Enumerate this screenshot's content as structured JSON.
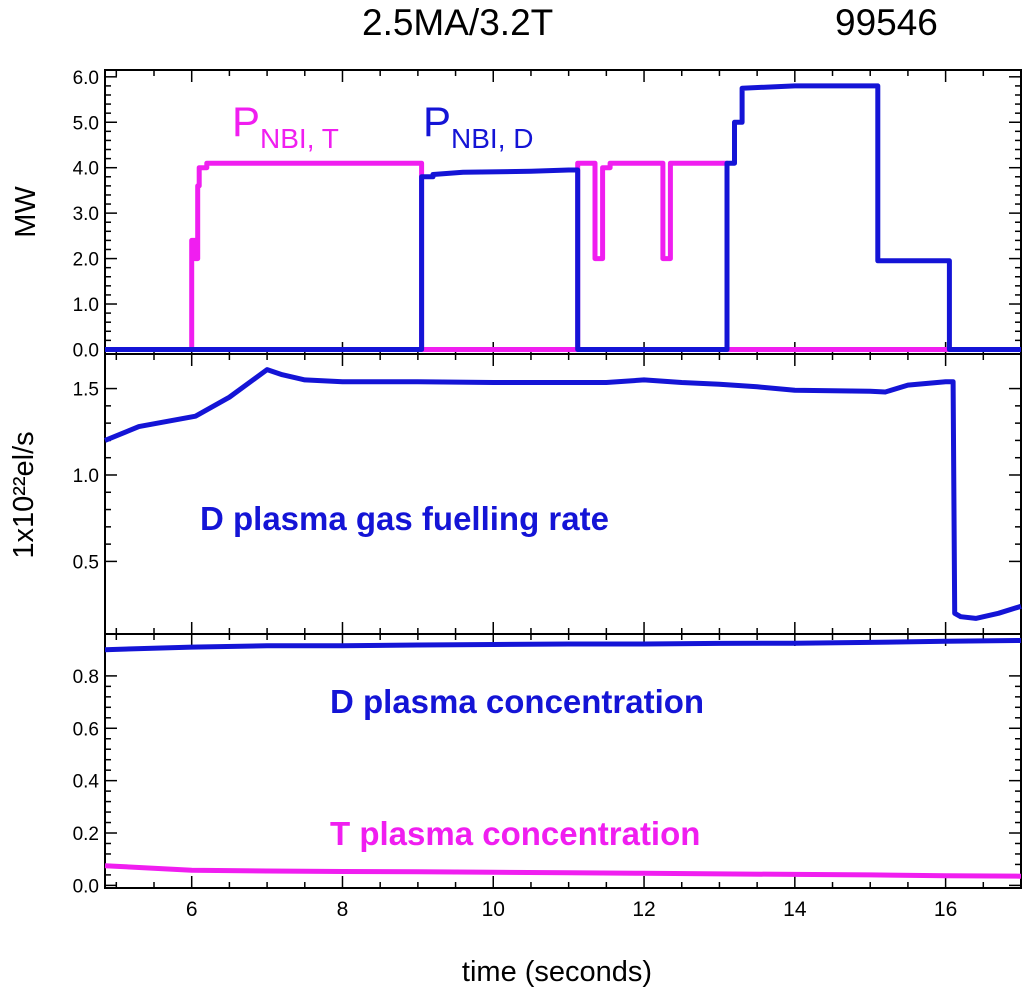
{
  "header": {
    "title": "2.5MA/3.2T",
    "shot": "99546"
  },
  "colors": {
    "deuterium": "#1414d6",
    "tritium": "#f01ef0",
    "axis": "#000000"
  },
  "xlabel": "time (seconds)",
  "chart_data": [
    {
      "type": "line",
      "ylabel": "MW",
      "xlim": [
        4.85,
        17.0
      ],
      "ylim": [
        -0.1,
        6.15
      ],
      "x_ticks": [
        6,
        8,
        10,
        12,
        14,
        16
      ],
      "y_ticks": [
        "0.0",
        "1.0",
        "2.0",
        "3.0",
        "4.0",
        "5.0",
        "6.0"
      ],
      "legend": {
        "t": {
          "main": "P",
          "sub": "NBI, T"
        },
        "d": {
          "main": "P",
          "sub": "NBI, D"
        }
      },
      "series": [
        {
          "name": "PNBI, T",
          "color": "tritium",
          "x": [
            4.85,
            6.0,
            6.0,
            6.04,
            6.04,
            6.08,
            6.08,
            6.1,
            6.1,
            6.2,
            6.2,
            9.05,
            9.05,
            11.12,
            11.12,
            11.35,
            11.35,
            11.45,
            11.45,
            11.55,
            11.55,
            12.25,
            12.25,
            12.35,
            12.35,
            13.1,
            13.1,
            17.0
          ],
          "y": [
            0,
            0,
            2.4,
            2.4,
            2.0,
            2.0,
            3.6,
            3.6,
            4.0,
            4.0,
            4.1,
            4.1,
            0,
            0,
            4.1,
            4.1,
            2.0,
            2.0,
            4.0,
            4.0,
            4.1,
            4.1,
            2.0,
            2.0,
            4.1,
            4.1,
            0,
            0
          ]
        },
        {
          "name": "PNBI, D",
          "color": "deuterium",
          "x": [
            4.85,
            9.05,
            9.05,
            9.2,
            9.2,
            9.6,
            10.5,
            11.0,
            11.0,
            11.12,
            11.12,
            13.1,
            13.1,
            13.2,
            13.2,
            13.3,
            13.3,
            14.0,
            15.0,
            15.1,
            15.1,
            15.7,
            16.05,
            16.05,
            17.0
          ],
          "y": [
            0,
            0,
            3.8,
            3.8,
            3.85,
            3.9,
            3.92,
            3.95,
            3.95,
            3.95,
            0,
            0,
            4.1,
            4.1,
            5.0,
            5.0,
            5.75,
            5.8,
            5.8,
            5.8,
            1.95,
            1.95,
            1.95,
            0,
            0
          ]
        }
      ]
    },
    {
      "type": "line",
      "ylabel": "1x10²²el/s",
      "xlim": [
        4.85,
        17.0
      ],
      "ylim": [
        0.08,
        1.7
      ],
      "x_ticks": [
        6,
        8,
        10,
        12,
        14,
        16
      ],
      "y_ticks": [
        "0.5",
        "1.0",
        "1.5"
      ],
      "annotation": "D plasma gas fuelling rate",
      "series": [
        {
          "name": "D plasma gas fuelling rate",
          "color": "deuterium",
          "x": [
            4.85,
            5.3,
            6.05,
            6.5,
            7.0,
            7.2,
            7.5,
            8.0,
            9.0,
            10.0,
            11.0,
            11.5,
            12.0,
            12.5,
            13.0,
            13.5,
            14.0,
            15.0,
            15.2,
            15.5,
            16.0,
            16.1,
            16.12,
            16.2,
            16.4,
            16.7,
            17.0
          ],
          "y": [
            1.2,
            1.28,
            1.34,
            1.45,
            1.61,
            1.58,
            1.55,
            1.54,
            1.54,
            1.535,
            1.535,
            1.535,
            1.55,
            1.535,
            1.525,
            1.51,
            1.49,
            1.485,
            1.48,
            1.52,
            1.54,
            1.54,
            0.2,
            0.18,
            0.17,
            0.2,
            0.24
          ]
        }
      ]
    },
    {
      "type": "line",
      "xlim": [
        4.85,
        17.0
      ],
      "ylim": [
        -0.01,
        0.96
      ],
      "x_ticks": [
        6,
        8,
        10,
        12,
        14,
        16
      ],
      "y_ticks": [
        "0.0",
        "0.2",
        "0.4",
        "0.6",
        "0.8"
      ],
      "annotations": [
        "D plasma concentration",
        "T plasma concentration"
      ],
      "series": [
        {
          "name": "D plasma concentration",
          "color": "deuterium",
          "x": [
            4.85,
            6.0,
            7.0,
            8.0,
            9.0,
            10.0,
            11.0,
            12.0,
            13.0,
            14.0,
            15.0,
            16.0,
            17.0
          ],
          "y": [
            0.9,
            0.91,
            0.915,
            0.915,
            0.918,
            0.92,
            0.922,
            0.922,
            0.924,
            0.925,
            0.928,
            0.932,
            0.935
          ]
        },
        {
          "name": "T plasma concentration",
          "color": "tritium",
          "x": [
            4.85,
            6.0,
            7.0,
            8.0,
            9.0,
            10.0,
            11.0,
            12.0,
            13.0,
            14.0,
            15.0,
            16.0,
            17.0
          ],
          "y": [
            0.075,
            0.058,
            0.055,
            0.053,
            0.052,
            0.05,
            0.048,
            0.046,
            0.044,
            0.042,
            0.04,
            0.037,
            0.035
          ]
        }
      ]
    }
  ]
}
